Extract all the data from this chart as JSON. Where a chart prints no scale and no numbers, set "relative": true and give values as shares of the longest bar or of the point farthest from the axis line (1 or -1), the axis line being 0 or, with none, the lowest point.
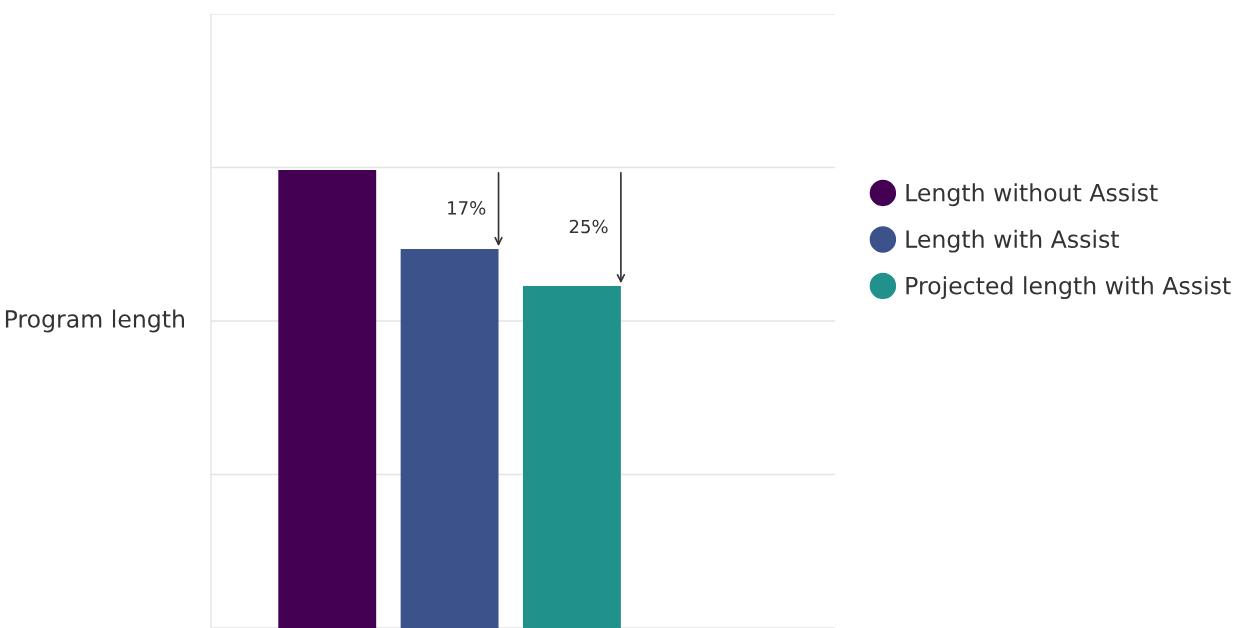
{
  "chart_data": {
    "type": "bar",
    "ylabel": "Program length",
    "relative": true,
    "stacked": true,
    "categories": [
      null,
      null,
      null
    ],
    "series": [
      {
        "name": "Length without Assist",
        "color": "#440154",
        "values": [
          1,
          null,
          null
        ]
      },
      {
        "name": "Length with Assist",
        "color": "#3b528b",
        "values": [
          null,
          0.83,
          null
        ]
      },
      {
        "name": "Projected length with Assist",
        "color": "#21918c",
        "values": [
          null,
          null,
          0.75
        ]
      }
    ],
    "annotations": [
      {
        "text": "17%",
        "y": 0.83
      },
      {
        "text": "25%",
        "y": 0.75
      }
    ],
    "grid": "y",
    "legend": "right",
    "marker": "circle"
  }
}
